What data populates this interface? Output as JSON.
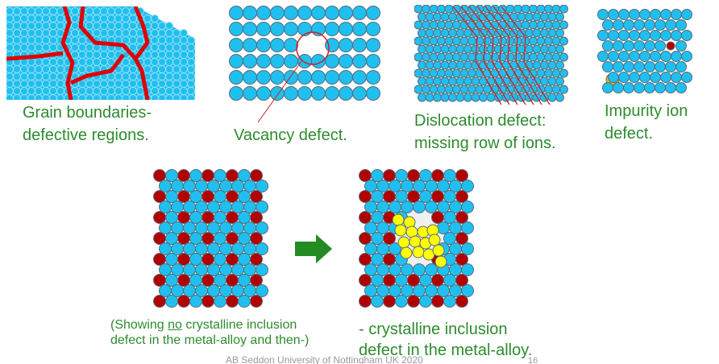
{
  "captions": {
    "grain_line1": "Grain boundaries-",
    "grain_line2": "defective regions.",
    "vacancy": "Vacancy defect.",
    "dislocation_line1": "Dislocation defect:",
    "dislocation_line2": "missing row of ions.",
    "impurity_line1": "Impurity ion",
    "impurity_line2": "defect.",
    "before_pre": "(Showing ",
    "before_underlined": "no",
    "before_post": " crystalline inclusion",
    "before_line2": " defect in the metal-alloy and then-)",
    "after_line1": "- crystalline inclusion",
    "after_line2": "defect in the metal-alloy."
  },
  "footer": "AB Seddon  University of Nottingham UK 2020",
  "page_number": "16",
  "colors": {
    "text": "#2e8b2e",
    "ion": "#1fc0f0",
    "dopant": "#b00000",
    "inclusion": "#ffff00",
    "arrow": "#228b22",
    "boundary": "#e00000"
  }
}
